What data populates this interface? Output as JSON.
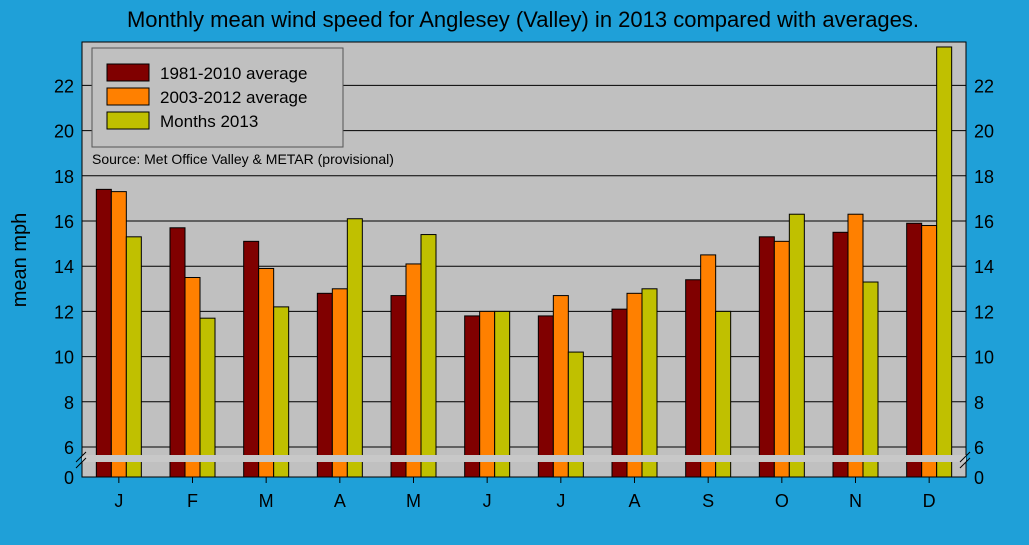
{
  "chart_data": {
    "type": "bar",
    "title": "Monthly mean wind speed for Anglesey (Valley) in 2013 compared with averages.",
    "ylabel": "mean mph",
    "annotation": "Source: Met Office Valley & METAR (provisional)",
    "categories": [
      "J",
      "F",
      "M",
      "A",
      "M",
      "J",
      "J",
      "A",
      "S",
      "O",
      "N",
      "D"
    ],
    "yticks": [
      0,
      6,
      8,
      10,
      12,
      14,
      16,
      18,
      20,
      22
    ],
    "ylim": [
      0,
      24
    ],
    "axis_break": "between 0 and 6",
    "grid": true,
    "legend_placement": "top-left",
    "series": [
      {
        "name": "1981-2010 average",
        "color": "#800000",
        "values": [
          17.4,
          15.7,
          15.1,
          12.8,
          12.7,
          11.8,
          11.8,
          12.1,
          13.4,
          15.3,
          15.5,
          15.9
        ]
      },
      {
        "name": "2003-2012 average",
        "color": "#ff8000",
        "values": [
          17.3,
          13.5,
          13.9,
          13.0,
          14.1,
          12.0,
          12.7,
          12.8,
          14.5,
          15.1,
          16.3,
          15.8
        ]
      },
      {
        "name": "Months  2013",
        "color": "#c0c000",
        "values": [
          15.3,
          11.7,
          12.2,
          16.1,
          15.4,
          12.0,
          10.2,
          13.0,
          12.0,
          16.3,
          13.3,
          23.7
        ]
      }
    ]
  }
}
